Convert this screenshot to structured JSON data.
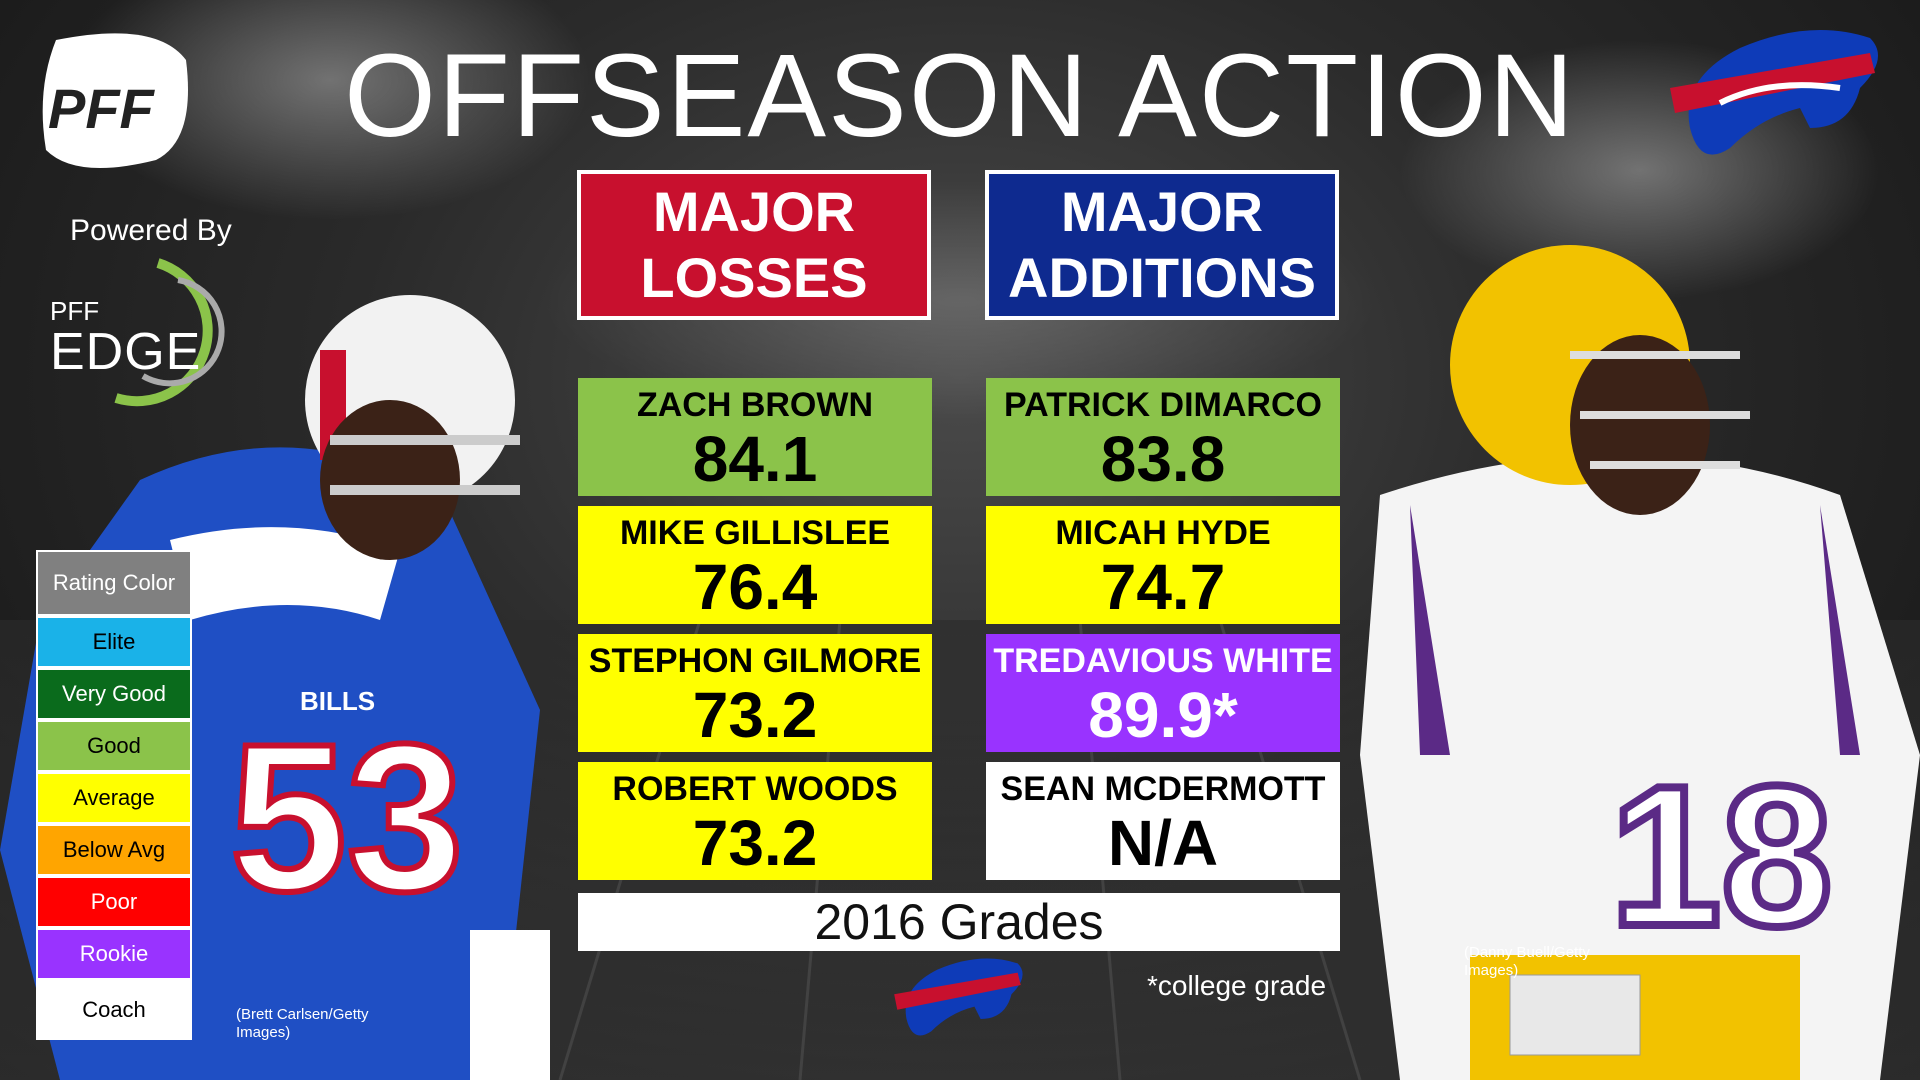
{
  "title": "OFFSEASON ACTION",
  "branding": {
    "powered_by": "Powered By",
    "edge_small": "PFF",
    "edge_big": "EDGE"
  },
  "headers": {
    "losses": [
      "MAJOR",
      "LOSSES"
    ],
    "additions": [
      "MAJOR",
      "ADDITIONS"
    ]
  },
  "losses": [
    {
      "name": "ZACH BROWN",
      "grade": "84.1",
      "rating": "Good"
    },
    {
      "name": "MIKE GILLISLEE",
      "grade": "76.4",
      "rating": "Average"
    },
    {
      "name": "STEPHON GILMORE",
      "grade": "73.2",
      "rating": "Average"
    },
    {
      "name": "ROBERT WOODS",
      "grade": "73.2",
      "rating": "Average"
    }
  ],
  "additions": [
    {
      "name": "PATRICK DIMARCO",
      "grade": "83.8",
      "rating": "Good"
    },
    {
      "name": "MICAH HYDE",
      "grade": "74.7",
      "rating": "Average"
    },
    {
      "name": "TREDAVIOUS WHITE",
      "grade": "89.9*",
      "rating": "Rookie"
    },
    {
      "name": "SEAN MCDERMOTT",
      "grade": "N/A",
      "rating": "Coach"
    }
  ],
  "footer": "2016 Grades",
  "note": "*college grade",
  "legend": {
    "title": "Rating Color",
    "items": [
      {
        "label": "Elite",
        "color": "#1ab2e8",
        "text": "#000000"
      },
      {
        "label": "Very Good",
        "color": "#0a6b1c",
        "text": "#ffffff"
      },
      {
        "label": "Good",
        "color": "#8bc34a",
        "text": "#000000"
      },
      {
        "label": "Average",
        "color": "#ffff00",
        "text": "#000000"
      },
      {
        "label": "Below Avg",
        "color": "#ffa500",
        "text": "#000000"
      },
      {
        "label": "Poor",
        "color": "#ff0000",
        "text": "#ffffff"
      },
      {
        "label": "Rookie",
        "color": "#9933ff",
        "text": "#ffffff"
      },
      {
        "label": "Coach",
        "color": "#ffffff",
        "text": "#000000"
      }
    ]
  },
  "colors": {
    "losses_header": "#c8102e",
    "additions_header": "#0e2a8f"
  },
  "credits": {
    "left": "(Brett Carlsen/Getty Images)",
    "right": "(Danny Buell/Getty Images)"
  }
}
